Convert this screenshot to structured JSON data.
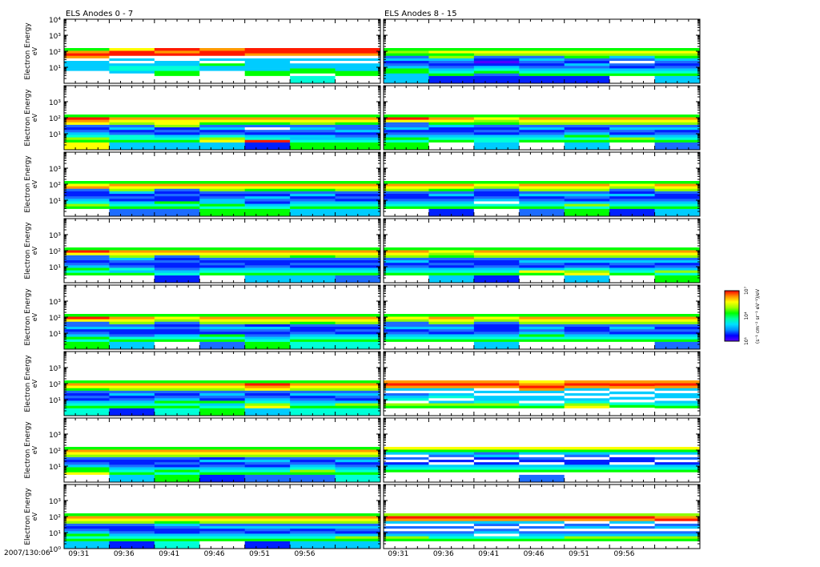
{
  "chart_data": {
    "type": "heatmap",
    "panel_titles": [
      "ELS Anodes 0 - 7",
      "ELS Anodes 8 - 15"
    ],
    "ylabel": "Electron Energy",
    "yunit": "eV",
    "ylim_log10": [
      0,
      4
    ],
    "y_tick_labels": [
      "10⁰",
      "10¹",
      "10²",
      "10³",
      "10⁴"
    ],
    "x_start_label": "2007/130:06",
    "x_tick_labels": [
      "09:31",
      "09:36",
      "09:41",
      "09:46",
      "09:51",
      "09:56"
    ],
    "energy_range_log10": [
      0,
      2.2
    ],
    "colorbar": {
      "label": "(s⁻¹ cm⁻² sr⁻¹ eV⁻¹)/eV",
      "tick_labels": [
        "10¹",
        "10⁴",
        "10⁷"
      ],
      "colors": [
        "#5a00ff",
        "#0000ff",
        "#0090ff",
        "#00e0ff",
        "#00ffa0",
        "#00ff00",
        "#a0ff00",
        "#ffff00",
        "#ff9000",
        "#ff0000"
      ]
    },
    "palette": {
      "w": "#ffffff",
      "p": "#5000ff",
      "b": "#0020ff",
      "B": "#1c6cff",
      "s": "#00ccff",
      "c": "#00ffd8",
      "g": "#00ff00",
      "l": "#90ff00",
      "y": "#ffff00",
      "o": "#ff9a00",
      "r": "#ff1a00"
    },
    "left_panels": [
      [
        "wwwwwssssworog",
        "wwwwsccswswrry",
        "wwwggccsswwror",
        "wwwwwssgwswrro",
        "wwwggsssssworr",
        "cccwggsswsworr",
        "wwwggssswsworr"
      ],
      [
        "yyyglcsBbByorg",
        "sssgccBbsBlyog",
        "sssgcsbBblyyog",
        "sssylcBbsBgyog",
        "bbbrcsbBwBgyog",
        "gggcssbBsBlyog",
        "gggcsBbsBBgyog"
      ],
      [
        "wwwglcsBbbBoyg",
        "BBBgcsbBbslyog",
        "BBBgcgbbBbByog",
        "gggcgssBbBlyog",
        "gggcsbBsbBgyog",
        "sssgcsBbsBgyog",
        "sssgcsbBbBlyog"
      ],
      [
        "wwwgcgsBbBByrg",
        "wwwgscBbBslyog",
        "bbbcsBbbBbByog",
        "wwwgcsbBbBlyog",
        "sssgcsBbbBlyog",
        "sssgcsbBbBgyog",
        "BBBgcsbBbBlyog"
      ],
      [
        "gggcgsBbsBByrg",
        "sssgcBbbsBlyog",
        "wwwgcsbbBbBlyg",
        "BBBgcgbBsBlyog",
        "gggcsBbBsblyog",
        "cccgcsBbbBgyog",
        "cccgcsbBbBlyog"
      ],
      [
        "cccgcsbBbBgyog",
        "bbbgcsBbsBlyog",
        "cccgcgsBbBlyog",
        "gggcsgbBsBlyog",
        "sssylcsBbByorg",
        "cccgcsBbsBlyog",
        "cccglsbBsBlyog"
      ],
      [
        "wwwyggsBbBlyog",
        "sssgcsBbbBlyog",
        "gggcgsbBbBlyog",
        "bbbgcsBbsblyog",
        "BBBgcsbBsBlyog",
        "BBBglcsBbBlyog",
        "cccgcsBbsBlyog"
      ],
      [
        "sssgcgsBbBlyog",
        "bbbgcsBbbBlyog",
        "cccgcsbbBsgyog",
        "wwwgcsBbsBlyog",
        "bbbgcsbBsBlyog",
        "sssgcsBbsBlyog",
        "sssglsbBsBlyog"
      ]
    ],
    "right_panels": [
      [
        "ssssggsBbsBglg",
        "bbbgcsBbBslgyg",
        "bbbBgcsbpbBlyg",
        "bbbgcsBbBsBlyg",
        "bbbgcsBsbBglyg",
        "wwwgcsbBwBslyg",
        "sssgcsBbBsglyg"
      ],
      [
        "gggcgsBbsBByrg",
        "wwwgcsBbbsgyog",
        "sssccsbBbBglyg",
        "wwwgcsBbsBlyog",
        "sssgcgsBbBlyog",
        "wwwglsbBsBlyog",
        "BBBgcsBbsBlyog"
      ],
      [
        "wwwgcsBbbBlyog",
        "bbbgcsBbsBgyog",
        "wwwgcwsBbbBlyg",
        "BBBgcsBbsBlyog",
        "gggclsbBsBlyog",
        "bbbgcsBbsbBlyg",
        "sssgcsBbbBlyog"
      ],
      [
        "wwwgcsBbsBlyog",
        "sssgcsbBbBglyg",
        "bbbgcsBbbBlyog",
        "wwwgysbBsBlyog",
        "sssylcBbsBlyog",
        "wwwgcsbBsBlyog",
        "gggclsBbsBlyog"
      ],
      [
        "wwwgcsBbsBBlyg",
        "wwwgcsbBsBlyog",
        "sssgcsBbbbBlyg",
        "wwwgcgsBsBlyog",
        "wwwgcsBbbBlyog",
        "wwwgcsbBsBlyog",
        "BBBgcsbBbBlyog"
      ],
      [
        "wwwglwcsBwsoro",
        "wwwglswcswsoro",
        "wwwglcsswsworo",
        "wwwgcwsswsoroy",
        "wwwylcswswsoro",
        "wwwgcwswsworo",
        "wwwgcswsswsoro"
      ],
      [
        "wwwwgcsbwBwsgy",
        "wwwwgcswbwBsgy",
        "wwwwgcsbwbsBgy",
        "BBBwgcswbBwsgy",
        "wwwwgcsbbwBsgy",
        "wwwwgcswbbwsgy",
        "wwwwgcsbwBwsgy"
      ],
      [
        "wwwglsBwBwsorl",
        "wwwgcsBwBwsorl",
        "wwwgcwsBwBsorl",
        "wwwgcsBwBwsorl",
        "wwwglsBwsBworl",
        "wwwglsBwBwsorl",
        "wwwglsBwsBwrol"
      ]
    ]
  }
}
